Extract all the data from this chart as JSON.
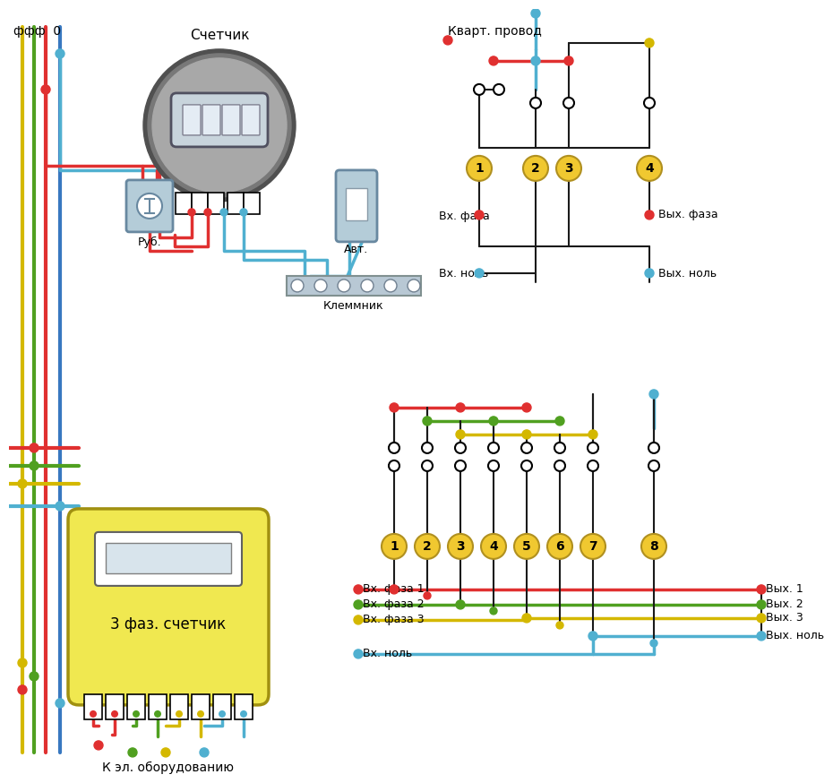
{
  "bg_color": "#FFFFFF",
  "colors": {
    "red": "#E03030",
    "blue": "#3878C0",
    "yellow": "#D4B800",
    "green": "#50A020",
    "black": "#1A1A1A",
    "gray_dark": "#606060",
    "gray_mid": "#909090",
    "gray_light": "#C0C0C0",
    "meter_outer": "#707070",
    "meter_inner": "#A8A8A8",
    "meter_body": "#B8B8B8",
    "display_bg": "#D0D8E0",
    "digit_bg": "#E8EEF4",
    "breaker_bg": "#B0C8DC",
    "breaker_border": "#7090A8",
    "rub_bg": "#B0C8DC",
    "klm_bg": "#B8C4CC",
    "yellow_meter_fill": "#F0E850",
    "yellow_meter_border": "#A09010",
    "terminal_fill": "#F0C830",
    "terminal_border": "#B09020",
    "cyan": "#50B0D0",
    "wire_lw": 2.5
  },
  "text": {
    "fff": "ффф  0",
    "schetcik": "Счетчик",
    "kvart_provod": "Кварт. провод",
    "rub": "Руб.",
    "avt": "Авт.",
    "klemnik": "Клеммник",
    "vkh_faza": "Вх. фаза",
    "vkh_nol": "Вх. ноль",
    "vikh_faza": "Вых. фаза",
    "vikh_nol": "Вых. ноль",
    "3faz": "3 фаз. счетчик",
    "k_el_obor": "К эл. оборудованию",
    "vkh_faza1": "Вх. фаза 1",
    "vkh_faza2": "Вх. фаза 2",
    "vkh_faza3": "Вх. фаза 3",
    "vkh_nol2": "Вх. ноль",
    "vikh_1": "Вых. 1",
    "vikh_2": "Вых. 2",
    "vikh_3": "Вых. 3",
    "vikh_nol2": "Вых. ноль"
  }
}
